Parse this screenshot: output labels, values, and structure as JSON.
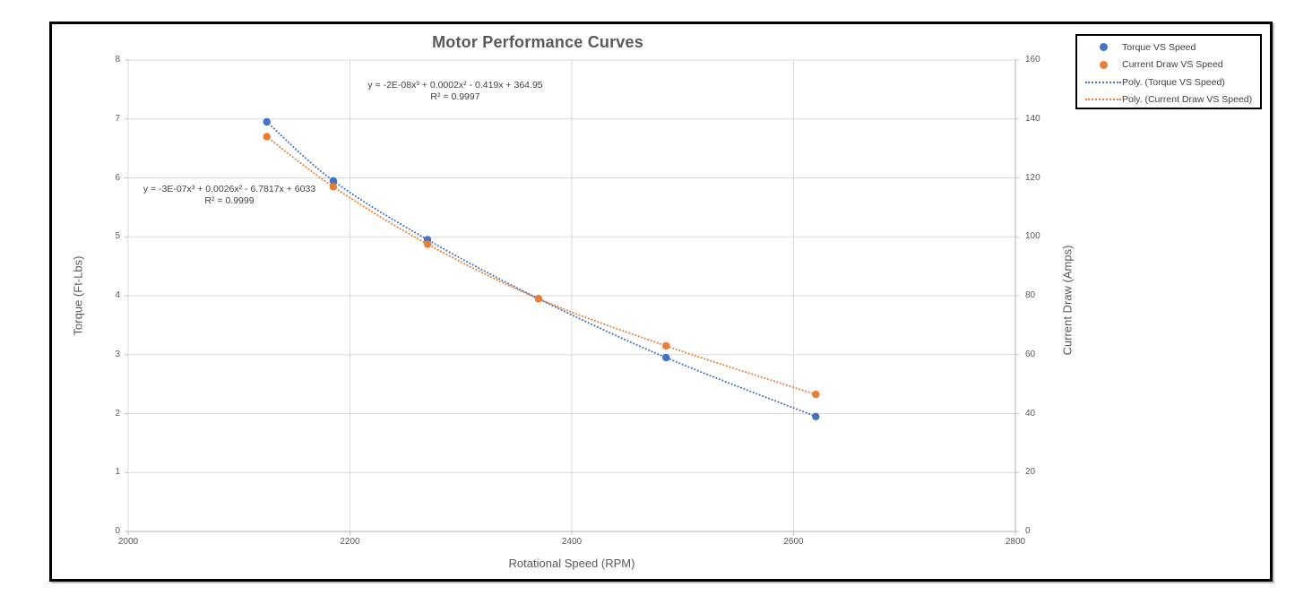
{
  "figure": {
    "title": "Motor Performance Curves"
  },
  "chart_data": {
    "type": "scatter",
    "title": "Motor Performance Curves",
    "xlabel": "Rotational Speed (RPM)",
    "grid": true,
    "legend_position": "top-right",
    "x_axis": {
      "min": 2000,
      "max": 2800,
      "ticks": [
        2000,
        2200,
        2400,
        2600,
        2800
      ]
    },
    "y_axis_left": {
      "label": "Torque (Ft-Lbs)",
      "min": 0,
      "max": 8,
      "ticks": [
        0,
        1,
        2,
        3,
        4,
        5,
        6,
        7,
        8
      ]
    },
    "y_axis_right": {
      "label": "Current Draw (Amps)",
      "min": 0,
      "max": 160,
      "ticks": [
        0,
        20,
        40,
        60,
        80,
        100,
        120,
        140,
        160
      ]
    },
    "series": [
      {
        "name": "Torque VS Speed",
        "axis": "left",
        "color": "#4472C4",
        "marker": "circle",
        "x": [
          2125,
          2185,
          2270,
          2370,
          2485,
          2620
        ],
        "y": [
          6.95,
          5.95,
          4.95,
          3.95,
          2.95,
          1.95
        ]
      },
      {
        "name": "Current Draw VS Speed",
        "axis": "right",
        "color": "#ED7D31",
        "marker": "circle",
        "x": [
          2125,
          2185,
          2270,
          2370,
          2485,
          2620
        ],
        "y": [
          134,
          117,
          97.5,
          79,
          63,
          46.5
        ]
      }
    ],
    "trendlines": [
      {
        "name": "Poly. (Torque VS Speed)",
        "series_index": 0,
        "color": "#4472C4",
        "style": "dotted",
        "equation": "y = -3E-07x³ + 0.0026x² - 6.7817x + 6033",
        "r_squared": "R² = 0.9999"
      },
      {
        "name": "Poly. (Current Draw VS Speed)",
        "series_index": 1,
        "color": "#ED7D31",
        "style": "dotted",
        "equation": "y = -2E-08x³ + 0.0002x² - 0.419x + 364.95",
        "r_squared": "R² = 0.9997"
      }
    ],
    "colors": {
      "gridline": "#D9D9D9",
      "axis_line": "#BFBFBF",
      "tick_text": "#595959",
      "title_text": "#595959",
      "annotation_text": "#404040"
    }
  }
}
